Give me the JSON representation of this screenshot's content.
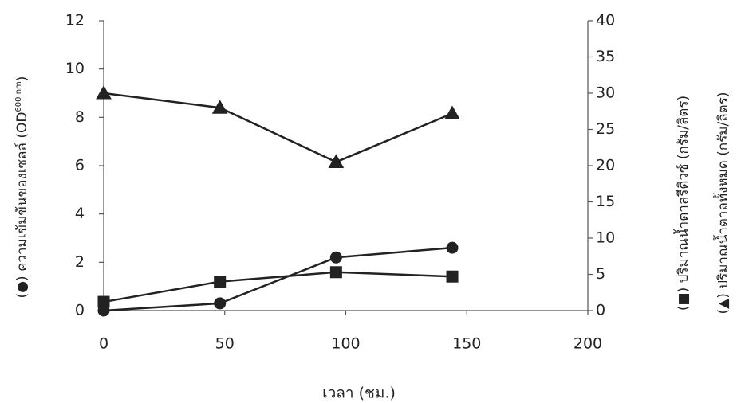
{
  "chart_data": {
    "type": "line",
    "x": [
      0,
      48,
      96,
      144
    ],
    "xlim": [
      0,
      200
    ],
    "xticks": [
      0,
      50,
      100,
      150,
      200
    ],
    "ylim": [
      0,
      12
    ],
    "yticks": [
      0,
      2,
      4,
      6,
      8,
      10,
      12
    ],
    "y2lim": [
      0,
      40
    ],
    "y2ticks": [
      0,
      5,
      10,
      15,
      20,
      25,
      30,
      35,
      40
    ],
    "xlabel": "เวลา (ชม.)",
    "ylabel": {
      "text": "(●) ความเข้มข้นของเซลล์ (OD",
      "sub": "600 nm",
      "end": ")"
    },
    "y2labels": [
      "(■) ปริมาณน้ำตาลรีดิวซ์ (กรัม/ลิตร)",
      "(▲) ปริมาณน้ำตาลทั้งหมด (กรัม/ลิตร)"
    ],
    "series": [
      {
        "marker": "circle",
        "color": "#222222",
        "values": [
          0,
          0.3,
          2.2,
          2.6
        ]
      },
      {
        "marker": "square",
        "color": "#222222",
        "axis": "y2",
        "values": [
          1.2,
          4.0,
          5.3,
          4.7
        ]
      },
      {
        "marker": "triangle",
        "color": "#222222",
        "axis": "y2",
        "values": [
          30,
          28,
          20.5,
          27.2
        ]
      }
    ]
  }
}
